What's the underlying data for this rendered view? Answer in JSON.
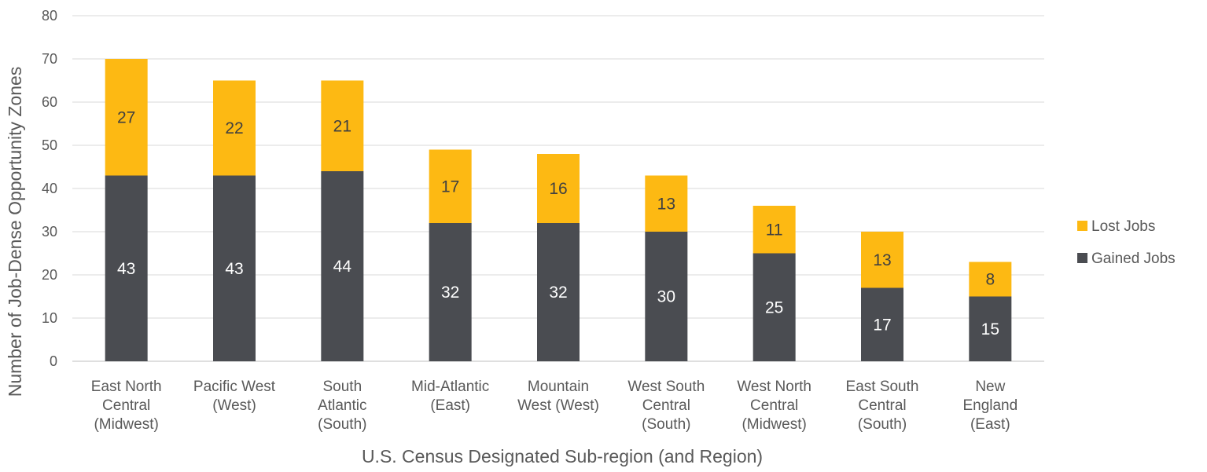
{
  "chart_data": {
    "type": "bar",
    "stacked": true,
    "title": "",
    "xlabel": "U.S. Census Designated Sub-region (and Region)",
    "ylabel": "Number of Job-Dense Opportunity Zones",
    "ylim": [
      0,
      80
    ],
    "yticks": [
      0,
      10,
      20,
      30,
      40,
      50,
      60,
      70,
      80
    ],
    "grid": true,
    "legend_position": "right",
    "categories": [
      [
        "East North",
        "Central",
        "(Midwest)"
      ],
      [
        "Pacific West",
        "(West)"
      ],
      [
        "South",
        "Atlantic",
        "(South)"
      ],
      [
        "Mid-Atlantic",
        "(East)"
      ],
      [
        "Mountain",
        "West (West)"
      ],
      [
        "West South",
        "Central",
        "(South)"
      ],
      [
        "West North",
        "Central",
        "(Midwest)"
      ],
      [
        "East South",
        "Central",
        "(South)"
      ],
      [
        "New",
        "England",
        "(East)"
      ]
    ],
    "series": [
      {
        "name": "Gained Jobs",
        "color": "#4a4c51",
        "label_color": "#ffffff",
        "values": [
          43,
          43,
          44,
          32,
          32,
          30,
          25,
          17,
          15
        ]
      },
      {
        "name": "Lost Jobs",
        "color": "#fdb913",
        "label_color": "#404040",
        "values": [
          27,
          22,
          21,
          17,
          16,
          13,
          11,
          13,
          8
        ]
      }
    ],
    "legend_order": [
      "Lost Jobs",
      "Gained Jobs"
    ]
  }
}
